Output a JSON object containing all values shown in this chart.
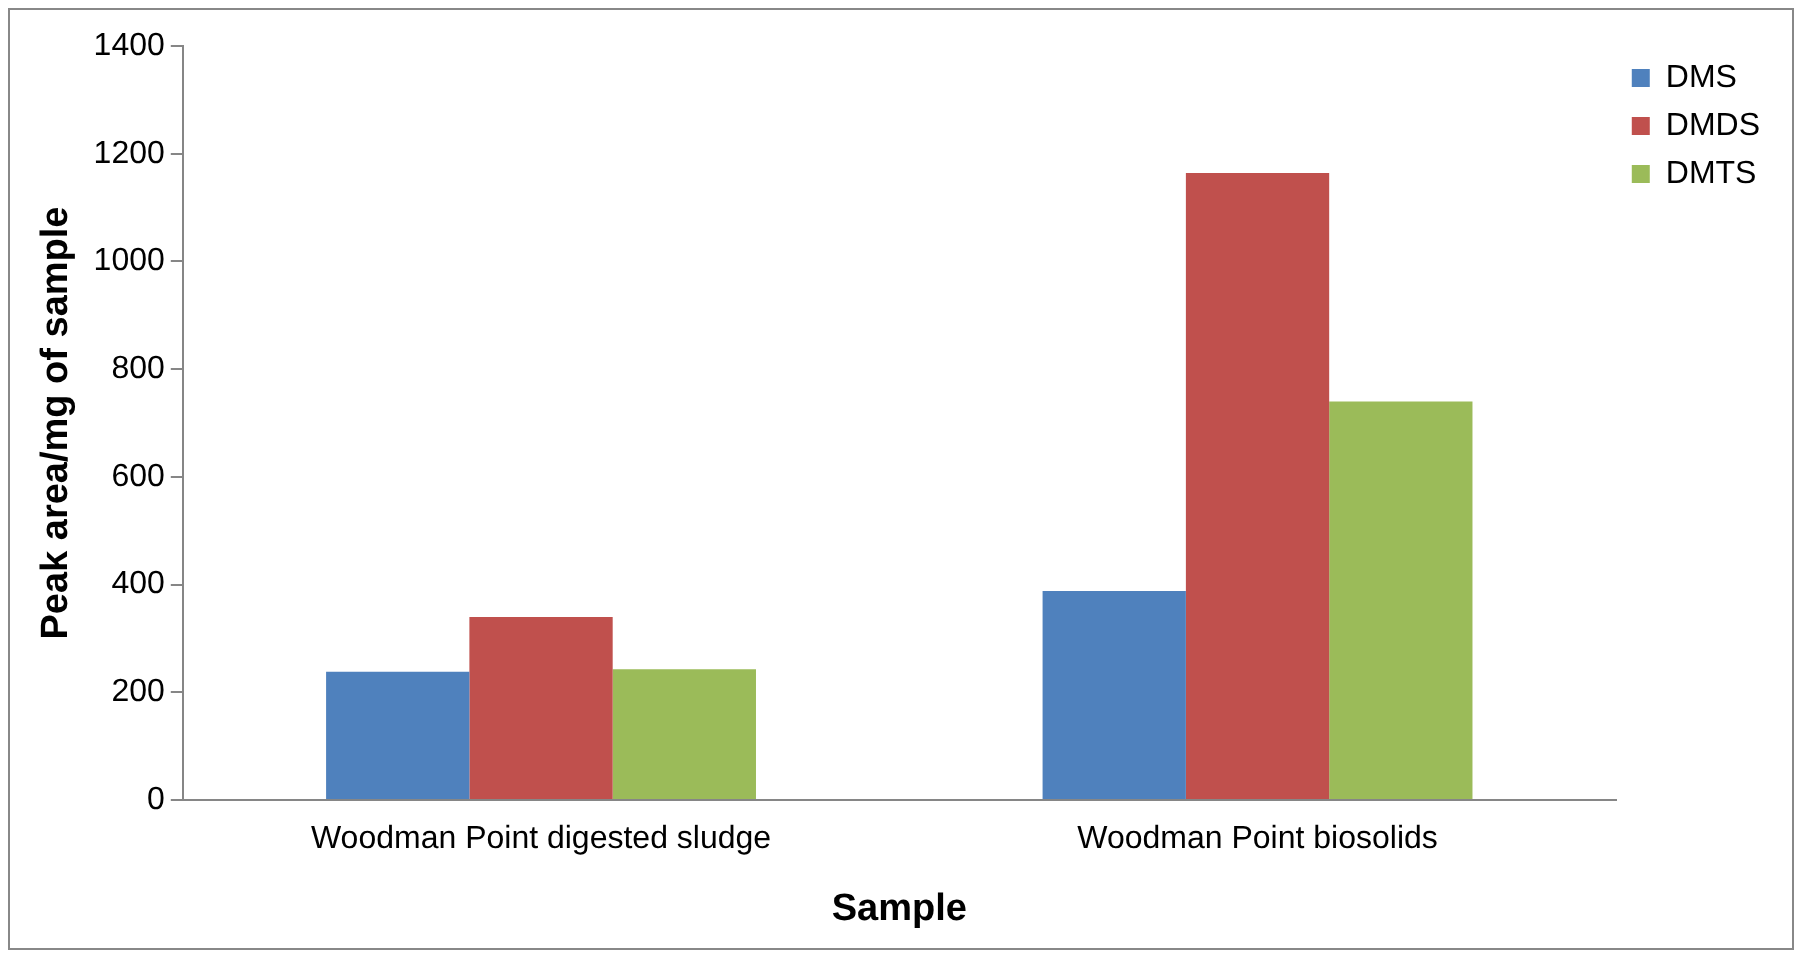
{
  "chart_data": {
    "type": "bar",
    "xlabel": "Sample",
    "ylabel": "Peak area/mg of sample",
    "categories": [
      "Woodman Point digested sludge",
      "Woodman Point biosolids"
    ],
    "series": [
      {
        "name": "DMS",
        "color": "#4f81bd",
        "values": [
          238,
          388
        ]
      },
      {
        "name": "DMDS",
        "color": "#c0504d",
        "values": [
          340,
          1164
        ]
      },
      {
        "name": "DMTS",
        "color": "#9bbb59",
        "values": [
          243,
          740
        ]
      }
    ],
    "ylim": [
      0,
      1400
    ],
    "yticks": [
      0,
      200,
      400,
      600,
      800,
      1000,
      1200,
      1400
    ],
    "grid": false,
    "legend": "top right"
  }
}
